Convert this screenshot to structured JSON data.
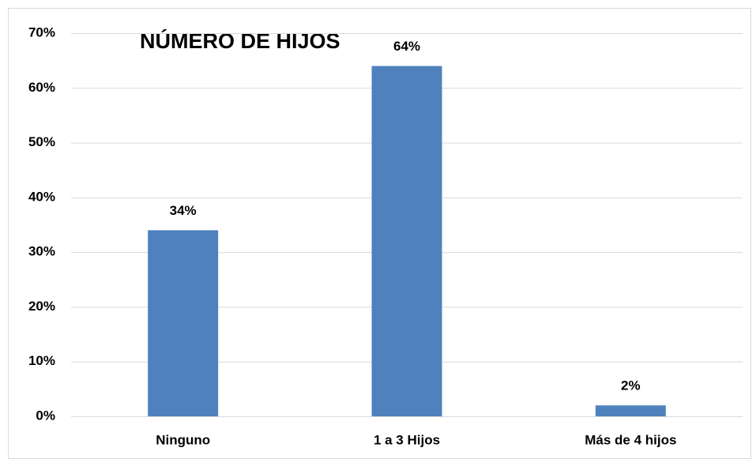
{
  "chart_data": {
    "type": "bar",
    "title": "NÚMERO DE HIJOS",
    "categories": [
      "Ninguno",
      "1 a 3 Hijos",
      "Más de 4 hijos"
    ],
    "values": [
      34,
      64,
      2
    ],
    "value_labels": [
      "34%",
      "64%",
      "2%"
    ],
    "color": "#4f81bd",
    "ylim": [
      0,
      70
    ],
    "yticks": [
      {
        "value": 0,
        "label": "0%"
      },
      {
        "value": 10,
        "label": "10%"
      },
      {
        "value": 20,
        "label": "20%"
      },
      {
        "value": 30,
        "label": "30%"
      },
      {
        "value": 40,
        "label": "40%"
      },
      {
        "value": 50,
        "label": "50%"
      },
      {
        "value": 60,
        "label": "60%"
      },
      {
        "value": 70,
        "label": "70%"
      }
    ],
    "grid": true
  }
}
